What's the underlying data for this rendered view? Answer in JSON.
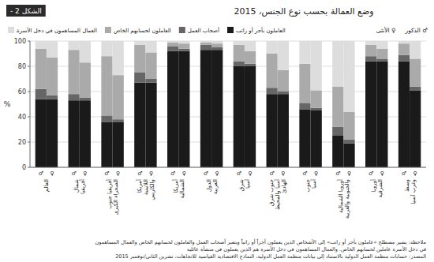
{
  "chart_data": {
    "type": "bar",
    "stacked": true,
    "title": "وضع العمالة بحسب نوع الجنس، 2015",
    "title_label": "الشكل 2 -",
    "ylabel": "%",
    "categories": [
      "العالم",
      "شمال\nأفريقيا",
      "أفريقيا جنوب\nالصحراء الكبرى",
      "أمريكا\nاللاتينية\nوالكاريبي",
      "أمريكا\nالشمالية",
      "الدول\nالعربية",
      "شرق\nآسيا",
      "جنوب شرق\nآسيا والمحيط\nالهادئ",
      "جنوب\nآسيا",
      "أوروبا الشمالية\nوالجنوبية والغربية",
      "أوروبا\nالشرقية",
      "وسط\nوغرب آسيا"
    ],
    "groups": [
      {
        "name": "♂ الذكور",
        "symbol": "♂",
        "series": [
          {
            "name": "العاملون بأجر أو راتب",
            "color": "#1a1a1a",
            "values": [
              54,
              53,
              36,
              67,
              92,
              93,
              80,
              58,
              46,
              25,
              84,
              84
            ]
          },
          {
            "name": "أصحاب العمل",
            "color": "#666666",
            "values": [
              8,
              5,
              5,
              8,
              4,
              4,
              4,
              5,
              5,
              7,
              4,
              5
            ]
          },
          {
            "name": "العاملون لحسابهم الخاص",
            "color": "#aaaaaa",
            "values": [
              32,
              35,
              47,
              22,
              3,
              2,
              13,
              27,
              31,
              32,
              9,
              9
            ]
          },
          {
            "name": "العمال المساهمون في دخل الأسرة",
            "color": "#dddddd",
            "values": [
              6,
              7,
              12,
              3,
              1,
              1,
              3,
              10,
              18,
              36,
              3,
              2
            ]
          }
        ]
      },
      {
        "name": "♀ الأنثى",
        "symbol": "♀",
        "series": [
          {
            "name": "العاملون بأجر أو راتب",
            "color": "#1a1a1a",
            "values": [
              54,
              53,
              36,
              67,
              92,
              93,
              80,
              58,
              45,
              19,
              84,
              61
            ]
          },
          {
            "name": "أصحاب العمل",
            "color": "#666666",
            "values": [
              3,
              2,
              2,
              3,
              2,
              2,
              2,
              2,
              2,
              3,
              2,
              3
            ]
          },
          {
            "name": "العاملون لحسابهم الخاص",
            "color": "#aaaaaa",
            "values": [
              30,
              28,
              35,
              21,
              4,
              3,
              10,
              17,
              14,
              22,
              8,
              22
            ]
          },
          {
            "name": "العمال المساهمون في دخل الأسرة",
            "color": "#dddddd",
            "values": [
              13,
              17,
              27,
              9,
              2,
              2,
              8,
              23,
              39,
              56,
              6,
              14
            ]
          }
        ]
      }
    ],
    "ylim": [
      0,
      100
    ],
    "yticks": [
      0,
      20,
      40,
      60,
      80,
      100
    ],
    "grid": true,
    "legend": "upper left",
    "notes": [
      "ملاحظة: يشير مصطلح «عاملون بأجر أو راتب» إلى الأشخاص الذين يعملون أجراً أو راتباً ويتعبر أصحاب العمل والعاملون لحسابهم الخاص والعمال المساهمون",
      "في دخل الأسرة عاملين لحسابهم الخاص.  والعمال المساهمون في دخل الأسرة هم الذين يعملون في منشأة عائلية"
    ],
    "source": "المصدر: حسابات منظمة العمل الدولية بالاستناد إلى بيانات منظمة العمل الدولية، النماذج الاقتصادية القياسية للاتجاهات، تشرين الثاني/نوفمبر 2015"
  }
}
